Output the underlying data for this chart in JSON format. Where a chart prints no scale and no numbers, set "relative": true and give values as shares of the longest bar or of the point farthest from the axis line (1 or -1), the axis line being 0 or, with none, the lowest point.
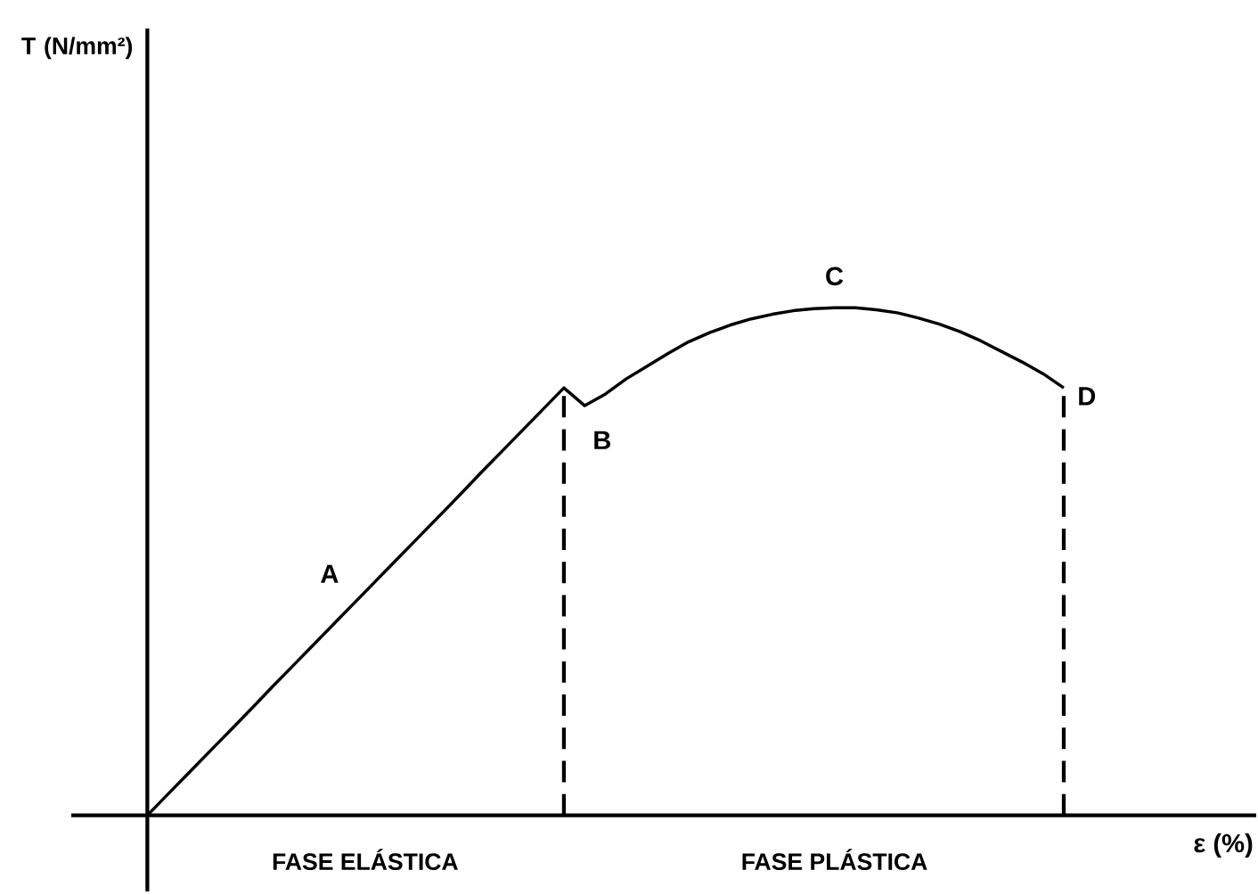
{
  "chart_data": {
    "type": "line",
    "relative": true,
    "tick_labels": false,
    "marker": "none",
    "line_style": "solid",
    "xlabel": "ε (%)",
    "categories": [
      null,
      null,
      null,
      null,
      null,
      null,
      null,
      null,
      null,
      null,
      null,
      null,
      null,
      null,
      null,
      null,
      null,
      null,
      null,
      null,
      null,
      null,
      null,
      null,
      null,
      null,
      null,
      null,
      null,
      null,
      null,
      null,
      null,
      null,
      null,
      null,
      null,
      null,
      null,
      null,
      null,
      null,
      null,
      null,
      null
    ],
    "series": [
      {
        "color": "#000000",
        "values": [
          0,
          0.042,
          0.084,
          0.126,
          0.168,
          0.21,
          0.253,
          0.295,
          0.337,
          0.379,
          0.421,
          0.463,
          0.505,
          0.547,
          0.589,
          0.631,
          0.674,
          0.716,
          0.758,
          0.8,
          0.842,
          0.807,
          0.83,
          0.86,
          0.885,
          0.91,
          0.933,
          0.951,
          0.966,
          0.978,
          0.987,
          0.994,
          0.998,
          1.0,
          1.0,
          0.996,
          0.99,
          0.98,
          0.968,
          0.953,
          0.935,
          0.914,
          0.893,
          0.87,
          0.842
        ]
      }
    ],
    "annotations": [
      "T (N/mm²)",
      "A",
      "B",
      "C",
      "D",
      "FASE ELÁSTICA",
      "FASE PLÁSTICA"
    ]
  }
}
